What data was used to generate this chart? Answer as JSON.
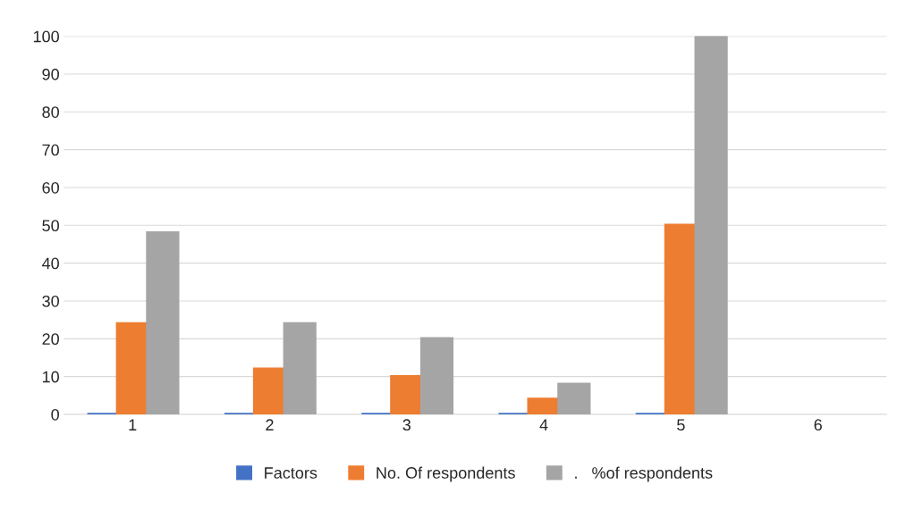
{
  "chart_data": {
    "type": "bar",
    "categories": [
      "1",
      "2",
      "3",
      "4",
      "5",
      "6"
    ],
    "series": [
      {
        "name": "Factors",
        "color": "#4472c4",
        "values": [
          0,
          0,
          0,
          0,
          0,
          null
        ]
      },
      {
        "name": "No. Of respondents",
        "color": "#ed7d31",
        "values": [
          24,
          12,
          10,
          4,
          50,
          null
        ]
      },
      {
        "name": ".   %of respondents",
        "color": "#a5a5a5",
        "values": [
          48,
          24,
          20,
          8,
          100,
          null
        ]
      }
    ],
    "ylim": [
      0,
      100
    ],
    "yticks": [
      0,
      10,
      20,
      30,
      40,
      50,
      60,
      70,
      80,
      90,
      100
    ],
    "grid": "y",
    "legend": "bottom"
  }
}
